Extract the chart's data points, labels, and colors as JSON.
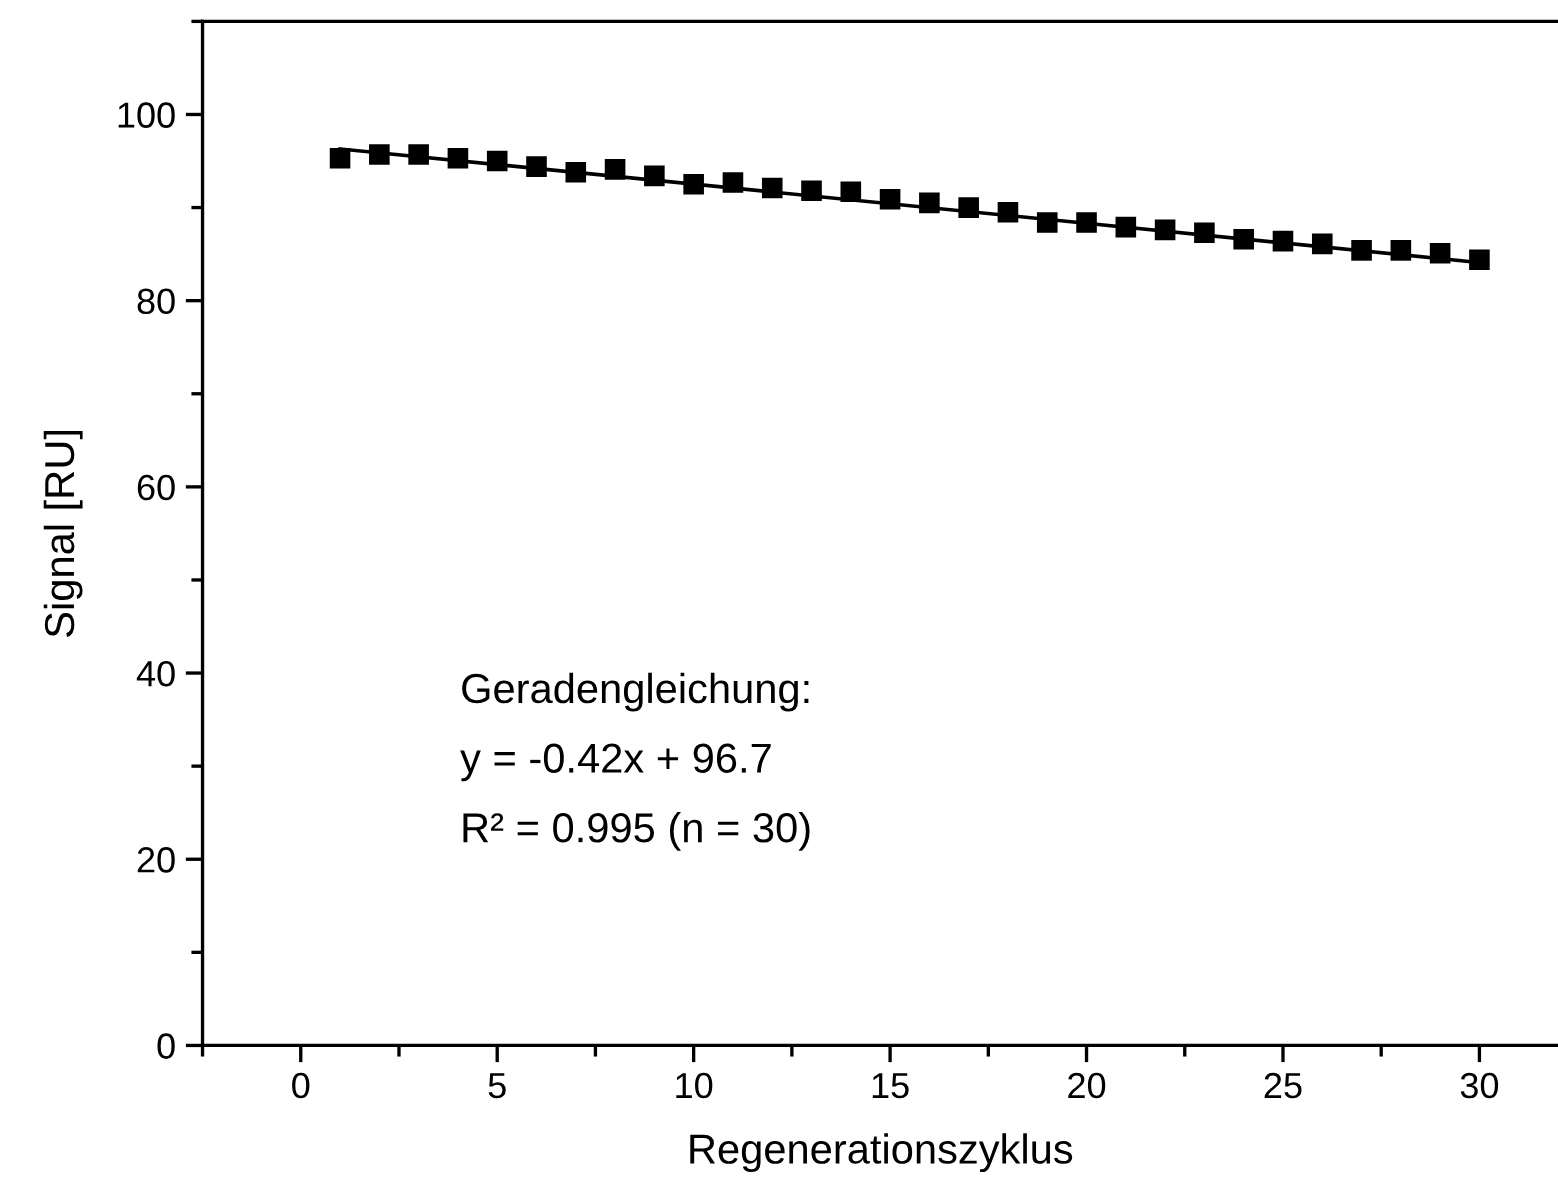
{
  "chart_data": {
    "type": "scatter",
    "xlabel": "Regenerationszyklus",
    "ylabel": "Signal [RU]",
    "x": [
      1,
      2,
      3,
      4,
      5,
      6,
      7,
      8,
      9,
      10,
      11,
      12,
      13,
      14,
      15,
      16,
      17,
      18,
      19,
      20,
      21,
      22,
      23,
      24,
      25,
      26,
      27,
      28,
      29,
      30
    ],
    "series": [
      {
        "color": "#000000",
        "marker": "square",
        "values": [
          95.3,
          95.7,
          95.7,
          95.3,
          95.0,
          94.4,
          93.8,
          94.1,
          93.4,
          92.5,
          92.7,
          92.1,
          91.8,
          91.7,
          90.9,
          90.5,
          90.0,
          89.5,
          88.4,
          88.4,
          87.9,
          87.6,
          87.3,
          86.6,
          86.4,
          86.1,
          85.4,
          85.4,
          85.1,
          84.4
        ]
      },
      {
        "type": "line",
        "color": "#000000",
        "line_style": "solid",
        "x": [
          1,
          30
        ],
        "values": [
          96.3,
          84.1
        ]
      }
    ],
    "xlim": [
      -2.5,
      32
    ],
    "xticks": [
      0,
      5,
      10,
      15,
      20,
      25,
      30
    ],
    "ylim": [
      0,
      110
    ],
    "yticks": [
      0,
      20,
      40,
      60,
      80,
      100
    ],
    "grid": false,
    "legend": false,
    "annotations": [
      "Geradengleichung:",
      "y = -0.42x + 96.7",
      "R² = 0.995 (n = 30)"
    ]
  }
}
